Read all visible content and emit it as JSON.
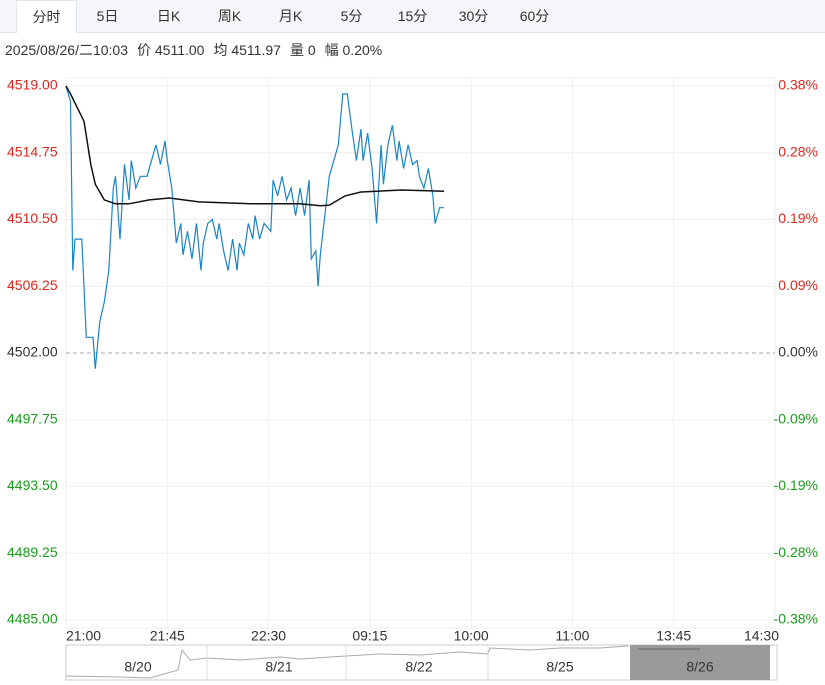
{
  "tabs": [
    "分时",
    "5日",
    "日K",
    "周K",
    "月K",
    "5分",
    "15分",
    "30分",
    "60分"
  ],
  "info": [
    "2025/08/26/二10:03",
    "价 4511.00",
    "均 4511.97",
    "量 0",
    "幅 0.20%"
  ],
  "chart_data": {
    "type": "line",
    "xlim": [
      0,
      315
    ],
    "xticks": [
      {
        "value": 0,
        "label": "21:00"
      },
      {
        "value": 45,
        "label": "21:45"
      },
      {
        "value": 90,
        "label": "22:30"
      },
      {
        "value": 135,
        "label": "09:15"
      },
      {
        "value": 180,
        "label": "10:00"
      },
      {
        "value": 225,
        "label": "11:00"
      },
      {
        "value": 270,
        "label": "13:45"
      },
      {
        "value": 315,
        "label": "14:30"
      }
    ],
    "ylim": [
      4485,
      4519
    ],
    "yticks": [
      {
        "value": 4519,
        "label": "4519.00"
      },
      {
        "value": 4514.75,
        "label": "4514.75"
      },
      {
        "value": 4510.5,
        "label": "4510.50"
      },
      {
        "value": 4506.25,
        "label": "4506.25"
      },
      {
        "value": 4502,
        "label": "4502.00"
      },
      {
        "value": 4497.75,
        "label": "4497.75"
      },
      {
        "value": 4493.5,
        "label": "4493.50"
      },
      {
        "value": 4489.25,
        "label": "4489.25"
      },
      {
        "value": 4485,
        "label": "4485.00"
      }
    ],
    "y2lim": [
      -0.3776,
      0.3776
    ],
    "y2ticks": [
      {
        "value": 0.3776,
        "label": "0.38%"
      },
      {
        "value": 0.2832,
        "label": "0.28%"
      },
      {
        "value": 0.1888,
        "label": "0.19%"
      },
      {
        "value": 0.0944,
        "label": "0.09%"
      },
      {
        "value": 0,
        "label": "0.00%"
      },
      {
        "value": -0.0944,
        "label": "-0.09%"
      },
      {
        "value": -0.1888,
        "label": "-0.19%"
      },
      {
        "value": -0.2832,
        "label": "-0.28%"
      },
      {
        "value": -0.3776,
        "label": "-0.38%"
      }
    ],
    "up_color": "#e0261c",
    "down_color": "#1a9c1a",
    "flat_color": "#333333",
    "grid": true,
    "series": [
      {
        "color": "#1a84c4",
        "x": [
          0,
          2,
          3,
          4,
          7,
          9,
          12,
          13,
          15,
          17,
          19,
          21,
          22,
          24,
          26,
          28,
          29,
          31,
          33,
          36,
          38,
          40,
          42,
          44,
          45,
          47,
          49,
          51,
          52,
          54,
          56,
          58,
          60,
          61,
          63,
          65,
          67,
          68,
          70,
          72,
          74,
          76,
          77,
          79,
          81,
          83,
          84,
          86,
          88,
          91,
          92,
          94,
          96,
          98,
          100,
          102,
          104,
          106,
          108,
          109,
          111,
          112,
          113,
          116,
          117,
          119,
          121,
          123,
          125,
          127,
          129,
          131,
          132,
          134,
          136,
          138,
          140,
          141,
          143,
          145,
          147,
          148,
          150,
          152,
          154,
          156,
          157,
          159,
          161,
          163,
          164,
          166,
          168
        ],
        "values": [
          4519,
          4518,
          4507.25,
          4509.25,
          4509.25,
          4503,
          4503,
          4501,
          4504,
          4505.25,
          4507.25,
          4512.5,
          4513.25,
          4509.25,
          4514,
          4511.75,
          4514.25,
          4512.5,
          4513.25,
          4513.25,
          4514.25,
          4515.25,
          4514,
          4515.5,
          4514.25,
          4512.5,
          4509,
          4510.25,
          4508.25,
          4509.75,
          4508,
          4510.25,
          4507.25,
          4509,
          4510.25,
          4510.5,
          4509.25,
          4510.25,
          4508.5,
          4507.25,
          4509.25,
          4507.25,
          4509,
          4508.25,
          4510.25,
          4509.25,
          4510.75,
          4509.25,
          4510.25,
          4509.75,
          4513,
          4512,
          4513.25,
          4511.75,
          4512.5,
          4510.75,
          4512.5,
          4510.75,
          4513,
          4508,
          4508.5,
          4506.25,
          4508.25,
          4512,
          4513.25,
          4514.25,
          4515.25,
          4518.5,
          4518.5,
          4516.25,
          4514.25,
          4516.25,
          4514.25,
          4516,
          4513.75,
          4510.25,
          4515.25,
          4512.75,
          4515.25,
          4516.5,
          4514.25,
          4515.5,
          4513.75,
          4515.25,
          4514,
          4514.25,
          4513.25,
          4512.5,
          4513.75,
          4512,
          4510.25,
          4511.25,
          4511.25
        ]
      },
      {
        "color": "#111111",
        "x": [
          0,
          2,
          8,
          11,
          13,
          17,
          22,
          28,
          37,
          46,
          59,
          82,
          104,
          113,
          117,
          124,
          131,
          149,
          168
        ],
        "values": [
          4519,
          4518.5,
          4516.75,
          4514,
          4512.75,
          4511.75,
          4511.5,
          4511.5,
          4511.75,
          4511.87,
          4511.62,
          4511.5,
          4511.5,
          4511.37,
          4511.42,
          4512,
          4512.25,
          4512.38,
          4512.3
        ]
      }
    ]
  },
  "navigator": [
    "8/20",
    "8/21",
    "8/22",
    "8/25",
    "8/26"
  ]
}
